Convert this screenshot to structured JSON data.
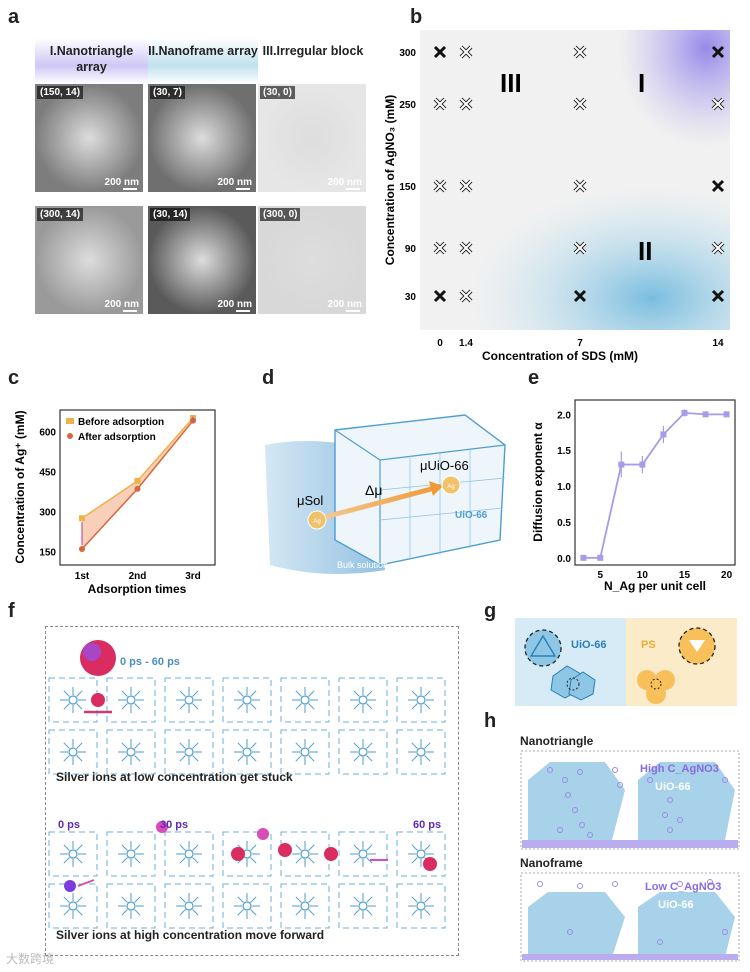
{
  "panel_a": {
    "letter": "a",
    "columns": [
      {
        "title": "I.Nanotriangle array",
        "color": "#c9c2f2"
      },
      {
        "title": "II.Nanoframe array",
        "color": "#bfe1ee"
      },
      {
        "title": "III.Irregular block",
        "color": "#f5f5f5"
      }
    ],
    "images": [
      {
        "tag": "(150, 14)",
        "scale": "200 nm"
      },
      {
        "tag": "(30, 7)",
        "scale": "200 nm"
      },
      {
        "tag": "(30, 0)",
        "scale": "200 nm"
      },
      {
        "tag": "(300, 14)",
        "scale": "200 nm"
      },
      {
        "tag": "(30, 14)",
        "scale": "200 nm"
      },
      {
        "tag": "(300, 0)",
        "scale": "200 nm"
      }
    ]
  },
  "panel_b": {
    "letter": "b",
    "ylabel": "Concentration of AgNO₃ (mM)",
    "xlabel": "Concentration of SDS (mM)",
    "region_labels": [
      "III",
      "I",
      "II"
    ],
    "xticks": [
      "0",
      "1.4",
      "7",
      "14"
    ],
    "yticks": [
      "300",
      "250",
      "150",
      "90",
      "30"
    ]
  },
  "panel_c": {
    "letter": "c",
    "ylabel": "Concentration of Ag⁺ (mM)",
    "xlabel": "Adsorption times",
    "xticks": [
      "1st",
      "2nd",
      "3rd"
    ],
    "yticks": [
      "150",
      "300",
      "450",
      "600"
    ],
    "legend": [
      "Before adsorption",
      "After adsorption"
    ]
  },
  "panel_d": {
    "letter": "d",
    "mu_sol": "μSol",
    "mu_uio": "μUiO-66",
    "delta_mu": "Δμ",
    "ag": "Ag",
    "uio": "UiO-66",
    "bulk": "Bulk solution"
  },
  "panel_e": {
    "letter": "e",
    "ylabel": "Diffusion exponent α",
    "xlabel": "N_Ag per unit cell",
    "xticks": [
      "5",
      "10",
      "15",
      "20"
    ],
    "yticks": [
      "0.0",
      "0.5",
      "1.0",
      "1.5",
      "2.0"
    ]
  },
  "panel_f": {
    "letter": "f",
    "time_top": "0 ps - 60 ps",
    "caption_top": "Silver ions at low concentration get stuck",
    "t0": "0 ps",
    "t30": "30 ps",
    "t60": "60 ps",
    "caption_bottom": "Silver ions at high concentration move forward"
  },
  "panel_g": {
    "letter": "g",
    "uio": "UiO-66",
    "ps": "PS"
  },
  "panel_h": {
    "letter": "h",
    "title_top": "Nanotriangle",
    "high": "High C_AgNO3",
    "uio_top": "UiO-66",
    "title_bottom": "Nanoframe",
    "low": "Low C_AgNO3",
    "uio_bottom": "UiO-66"
  },
  "watermark": "大数跨境",
  "chart_data": [
    {
      "type": "scatter",
      "title": "",
      "xlabel": "Concentration of SDS (mM)",
      "ylabel": "Concentration of AgNO₃ (mM)",
      "x_ticks": [
        0,
        1.4,
        7,
        14
      ],
      "y_ticks": [
        30,
        90,
        150,
        250,
        300
      ],
      "points": [
        {
          "x": 0,
          "y": 300,
          "marker": "filled"
        },
        {
          "x": 1.4,
          "y": 300,
          "marker": "open"
        },
        {
          "x": 7,
          "y": 300,
          "marker": "open"
        },
        {
          "x": 14,
          "y": 300,
          "marker": "filled"
        },
        {
          "x": 0,
          "y": 250,
          "marker": "open"
        },
        {
          "x": 1.4,
          "y": 250,
          "marker": "open"
        },
        {
          "x": 7,
          "y": 250,
          "marker": "open"
        },
        {
          "x": 14,
          "y": 250,
          "marker": "open"
        },
        {
          "x": 0,
          "y": 150,
          "marker": "open"
        },
        {
          "x": 1.4,
          "y": 150,
          "marker": "open"
        },
        {
          "x": 7,
          "y": 150,
          "marker": "open"
        },
        {
          "x": 14,
          "y": 150,
          "marker": "filled"
        },
        {
          "x": 0,
          "y": 90,
          "marker": "open"
        },
        {
          "x": 1.4,
          "y": 90,
          "marker": "open"
        },
        {
          "x": 7,
          "y": 90,
          "marker": "open"
        },
        {
          "x": 14,
          "y": 90,
          "marker": "open"
        },
        {
          "x": 0,
          "y": 30,
          "marker": "filled"
        },
        {
          "x": 1.4,
          "y": 30,
          "marker": "open"
        },
        {
          "x": 7,
          "y": 30,
          "marker": "filled"
        },
        {
          "x": 14,
          "y": 30,
          "marker": "filled"
        }
      ]
    },
    {
      "type": "line",
      "xlabel": "Adsorption times",
      "ylabel": "Concentration of Ag⁺ (mM)",
      "categories": [
        "1st",
        "2nd",
        "3rd"
      ],
      "ylim": [
        100,
        680
      ],
      "series": [
        {
          "name": "Before adsorption",
          "values": [
            275,
            415,
            650
          ],
          "color": "#f0b24a"
        },
        {
          "name": "After adsorption",
          "values": [
            160,
            385,
            640
          ],
          "color": "#d8683a"
        }
      ]
    },
    {
      "type": "line",
      "xlabel": "N_Ag per unit cell",
      "ylabel": "Diffusion exponent α",
      "xlim": [
        2,
        21
      ],
      "ylim": [
        -0.1,
        2.2
      ],
      "series": [
        {
          "name": "",
          "x": [
            3,
            5,
            7.5,
            10,
            12.5,
            15,
            17.5,
            20
          ],
          "values": [
            0.0,
            0.0,
            1.3,
            1.3,
            1.72,
            2.02,
            2.0,
            2.0
          ],
          "errors": [
            0,
            0,
            0.18,
            0.12,
            0.12,
            0.05,
            0,
            0
          ],
          "color": "#a99be8"
        }
      ]
    }
  ]
}
